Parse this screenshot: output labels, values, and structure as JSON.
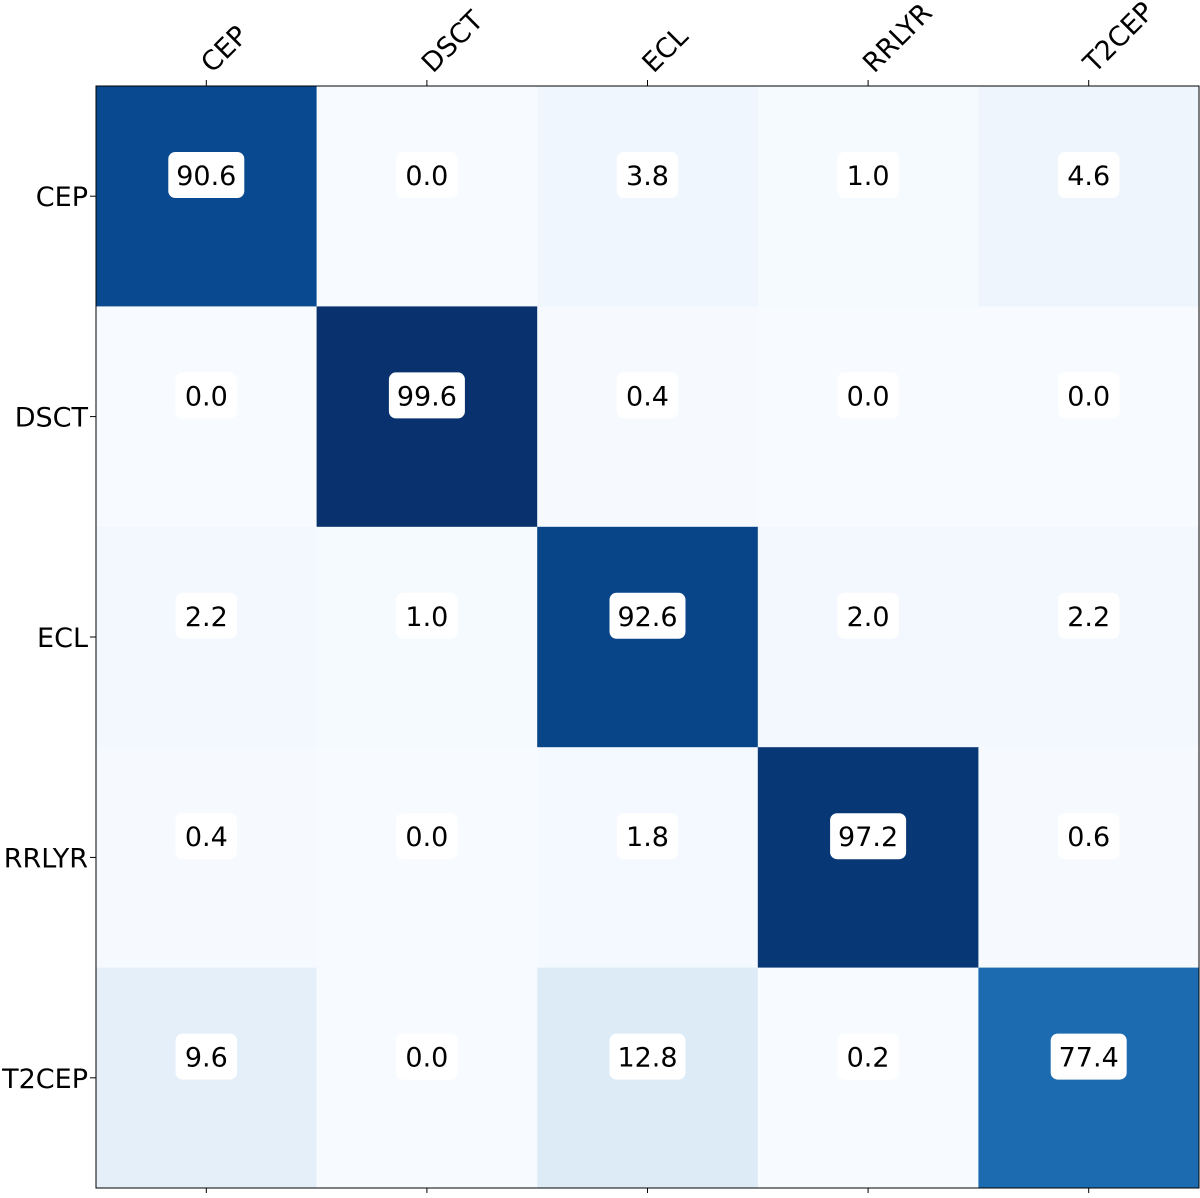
{
  "chart_data": {
    "type": "heatmap",
    "title": "",
    "xlabel": "",
    "ylabel": "",
    "x_categories": [
      "CEP",
      "DSCT",
      "ECL",
      "RRLYR",
      "T2CEP"
    ],
    "y_categories": [
      "CEP",
      "DSCT",
      "ECL",
      "RRLYR",
      "T2CEP"
    ],
    "values": [
      [
        90.6,
        0.0,
        3.8,
        1.0,
        4.6
      ],
      [
        0.0,
        99.6,
        0.4,
        0.0,
        0.0
      ],
      [
        2.2,
        1.0,
        92.6,
        2.0,
        2.2
      ],
      [
        0.4,
        0.0,
        1.8,
        97.2,
        0.6
      ],
      [
        9.6,
        0.0,
        12.8,
        0.2,
        77.4
      ]
    ],
    "value_range": [
      0,
      100
    ],
    "colormap": "Blues",
    "colorbar": false,
    "x_tick_position": "top",
    "x_tick_rotation_deg": 45,
    "annotations": "values shown in rounded white boxes"
  },
  "colors": {
    "low": "#f7fbff",
    "mid": "#6baed6",
    "high": "#08306b",
    "label_box": "#ffffff",
    "axis": "#000000"
  }
}
